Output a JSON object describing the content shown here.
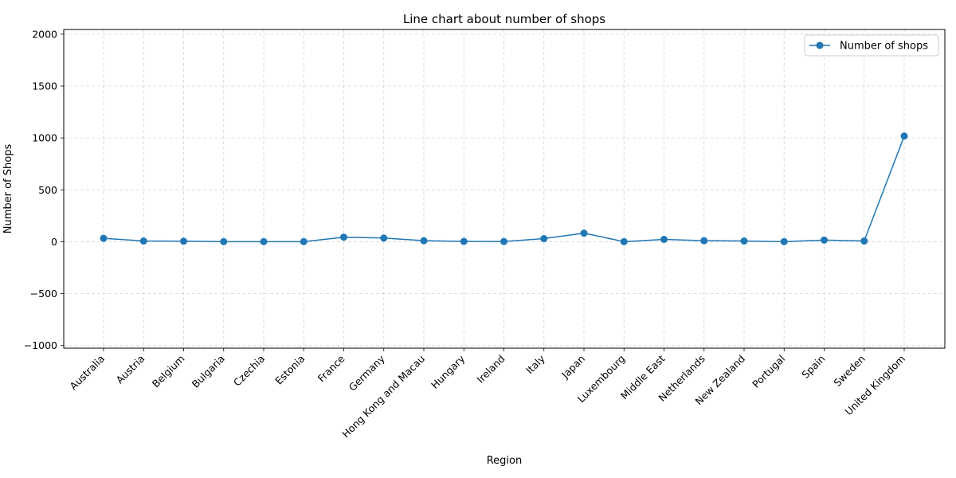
{
  "chart_data": {
    "type": "line",
    "title": "Line chart about number of shops",
    "xlabel": "Region",
    "ylabel": "Number of Shops",
    "categories": [
      "Australia",
      "Austria",
      "Belgium",
      "Bulgaria",
      "Czechia",
      "Estonia",
      "France",
      "Germany",
      "Hong Kong and Macau",
      "Hungary",
      "Ireland",
      "Italy",
      "Japan",
      "Luxembourg",
      "Middle East",
      "Netherlands",
      "New Zealand",
      "Portugal",
      "Spain",
      "Sweden",
      "United Kingdom"
    ],
    "series": [
      {
        "name": "Number of shops",
        "values": [
          33,
          7,
          5,
          1,
          1,
          1,
          44,
          36,
          10,
          3,
          2,
          30,
          83,
          1,
          23,
          10,
          7,
          1,
          16,
          7,
          1018
        ],
        "color": "#1f77b4"
      }
    ],
    "ylim": [
      -1025,
      2045
    ],
    "yticks": [
      -1000,
      -500,
      0,
      500,
      1000,
      1500,
      2000
    ],
    "ytick_labels": [
      "−1000",
      "−500",
      "0",
      "500",
      "1000",
      "1500",
      "2000"
    ],
    "grid": true,
    "legend_position": "top-right"
  }
}
